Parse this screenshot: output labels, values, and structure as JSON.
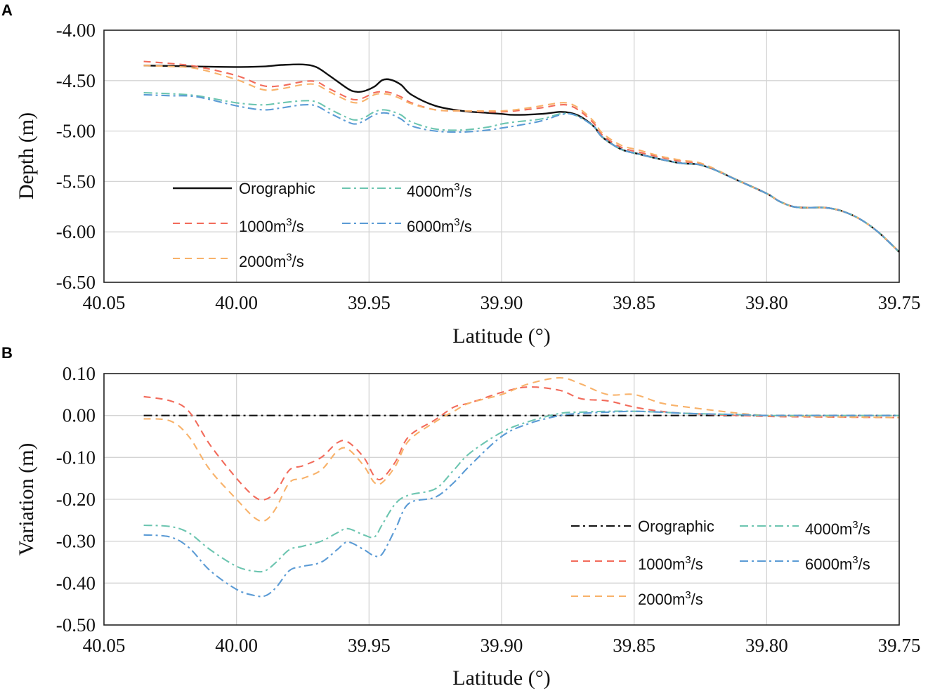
{
  "chart_data": [
    {
      "panel": "A",
      "type": "line",
      "xlabel": "Latitude (°)",
      "ylabel": "Depth (m)",
      "xlim": [
        40.05,
        39.75
      ],
      "ylim": [
        -6.5,
        -4.0
      ],
      "xticks": [
        40.05,
        40.0,
        39.95,
        39.9,
        39.85,
        39.8,
        39.75
      ],
      "xtick_labels": [
        "40.05",
        "40.00",
        "39.95",
        "39.90",
        "39.85",
        "39.80",
        "39.75"
      ],
      "yticks": [
        -4.0,
        -4.5,
        -5.0,
        -5.5,
        -6.0,
        -6.5
      ],
      "ytick_labels": [
        "-4.00",
        "-4.50",
        "-5.00",
        "-5.50",
        "-6.00",
        "-6.50"
      ],
      "grid": true,
      "legend_position": "lower-left",
      "series": [
        {
          "name": "Orographic",
          "color": "#111111",
          "dash": "solid",
          "x": [
            40.035,
            40.025,
            40.015,
            40.0,
            39.99,
            39.983,
            39.975,
            39.97,
            39.965,
            39.958,
            39.955,
            39.952,
            39.948,
            39.945,
            39.942,
            39.938,
            39.934,
            39.925,
            39.915,
            39.905,
            39.9,
            39.895,
            39.885,
            39.878,
            39.874,
            39.87,
            39.865,
            39.862,
            39.855,
            39.848,
            39.84,
            39.832,
            39.826,
            39.82,
            39.81,
            39.8,
            39.795,
            39.79,
            39.785,
            39.778,
            39.772,
            39.765,
            39.758,
            39.75
          ],
          "y": [
            -4.35,
            -4.355,
            -4.36,
            -4.365,
            -4.36,
            -4.345,
            -4.34,
            -4.365,
            -4.45,
            -4.58,
            -4.61,
            -4.605,
            -4.56,
            -4.495,
            -4.49,
            -4.54,
            -4.64,
            -4.75,
            -4.8,
            -4.82,
            -4.83,
            -4.84,
            -4.83,
            -4.81,
            -4.82,
            -4.86,
            -4.96,
            -5.06,
            -5.18,
            -5.23,
            -5.28,
            -5.32,
            -5.33,
            -5.38,
            -5.5,
            -5.62,
            -5.7,
            -5.75,
            -5.76,
            -5.76,
            -5.79,
            -5.87,
            -6.0,
            -6.2
          ]
        },
        {
          "name": "1000m³/s",
          "color": "#f26b5b",
          "dash": "dashed",
          "x": [
            40.035,
            40.025,
            40.015,
            40.0,
            39.99,
            39.983,
            39.975,
            39.97,
            39.965,
            39.958,
            39.955,
            39.952,
            39.948,
            39.945,
            39.942,
            39.938,
            39.934,
            39.925,
            39.915,
            39.905,
            39.9,
            39.895,
            39.885,
            39.878,
            39.874,
            39.87,
            39.865,
            39.862,
            39.855,
            39.848,
            39.84,
            39.832,
            39.826,
            39.82,
            39.81,
            39.8,
            39.795,
            39.79,
            39.785,
            39.778,
            39.772,
            39.765,
            39.758,
            39.75
          ],
          "y": [
            -4.31,
            -4.33,
            -4.36,
            -4.45,
            -4.55,
            -4.55,
            -4.51,
            -4.51,
            -4.58,
            -4.67,
            -4.69,
            -4.67,
            -4.62,
            -4.61,
            -4.62,
            -4.66,
            -4.72,
            -4.79,
            -4.8,
            -4.81,
            -4.81,
            -4.8,
            -4.77,
            -4.74,
            -4.75,
            -4.81,
            -4.93,
            -5.04,
            -5.16,
            -5.21,
            -5.26,
            -5.3,
            -5.32,
            -5.38,
            -5.5,
            -5.62,
            -5.7,
            -5.75,
            -5.76,
            -5.76,
            -5.79,
            -5.87,
            -6.0,
            -6.2
          ]
        },
        {
          "name": "2000m³/s",
          "color": "#f8b26a",
          "dash": "dashed",
          "x": [
            40.035,
            40.025,
            40.015,
            40.0,
            39.99,
            39.983,
            39.975,
            39.97,
            39.965,
            39.958,
            39.955,
            39.952,
            39.948,
            39.945,
            39.942,
            39.938,
            39.934,
            39.925,
            39.915,
            39.905,
            39.9,
            39.895,
            39.885,
            39.878,
            39.874,
            39.87,
            39.865,
            39.862,
            39.855,
            39.848,
            39.84,
            39.832,
            39.826,
            39.82,
            39.81,
            39.8,
            39.795,
            39.79,
            39.785,
            39.778,
            39.772,
            39.765,
            39.758,
            39.75
          ],
          "y": [
            -4.35,
            -4.36,
            -4.38,
            -4.49,
            -4.59,
            -4.58,
            -4.54,
            -4.54,
            -4.61,
            -4.7,
            -4.72,
            -4.7,
            -4.64,
            -4.63,
            -4.64,
            -4.68,
            -4.73,
            -4.79,
            -4.8,
            -4.8,
            -4.8,
            -4.79,
            -4.75,
            -4.72,
            -4.73,
            -4.79,
            -4.91,
            -5.02,
            -5.14,
            -5.19,
            -5.25,
            -5.29,
            -5.31,
            -5.37,
            -5.5,
            -5.62,
            -5.7,
            -5.75,
            -5.76,
            -5.76,
            -5.79,
            -5.87,
            -6.0,
            -6.2
          ]
        },
        {
          "name": "4000m³/s",
          "color": "#6cc5b0",
          "dash": "dashdot",
          "x": [
            40.035,
            40.025,
            40.015,
            40.0,
            39.99,
            39.983,
            39.975,
            39.97,
            39.965,
            39.958,
            39.955,
            39.952,
            39.948,
            39.945,
            39.942,
            39.938,
            39.934,
            39.925,
            39.915,
            39.905,
            39.9,
            39.895,
            39.885,
            39.878,
            39.874,
            39.87,
            39.865,
            39.862,
            39.855,
            39.848,
            39.84,
            39.832,
            39.826,
            39.82,
            39.81,
            39.8,
            39.795,
            39.79,
            39.785,
            39.778,
            39.772,
            39.765,
            39.758,
            39.75
          ],
          "y": [
            -4.62,
            -4.63,
            -4.65,
            -4.72,
            -4.74,
            -4.72,
            -4.7,
            -4.71,
            -4.78,
            -4.87,
            -4.89,
            -4.87,
            -4.81,
            -4.79,
            -4.8,
            -4.84,
            -4.91,
            -4.98,
            -4.99,
            -4.96,
            -4.93,
            -4.91,
            -4.88,
            -4.83,
            -4.83,
            -4.87,
            -4.96,
            -5.06,
            -5.18,
            -5.23,
            -5.28,
            -5.32,
            -5.33,
            -5.38,
            -5.5,
            -5.62,
            -5.7,
            -5.75,
            -5.76,
            -5.76,
            -5.79,
            -5.87,
            -6.0,
            -6.2
          ]
        },
        {
          "name": "6000m³/s",
          "color": "#5b9bd5",
          "dash": "dashdot",
          "x": [
            40.035,
            40.025,
            40.015,
            40.0,
            39.99,
            39.983,
            39.975,
            39.97,
            39.965,
            39.958,
            39.955,
            39.952,
            39.948,
            39.945,
            39.942,
            39.938,
            39.934,
            39.925,
            39.915,
            39.905,
            39.9,
            39.895,
            39.885,
            39.878,
            39.874,
            39.87,
            39.865,
            39.862,
            39.855,
            39.848,
            39.84,
            39.832,
            39.826,
            39.82,
            39.81,
            39.8,
            39.795,
            39.79,
            39.785,
            39.778,
            39.772,
            39.765,
            39.758,
            39.75
          ],
          "y": [
            -4.64,
            -4.65,
            -4.66,
            -4.75,
            -4.79,
            -4.77,
            -4.74,
            -4.75,
            -4.82,
            -4.91,
            -4.93,
            -4.9,
            -4.84,
            -4.82,
            -4.83,
            -4.88,
            -4.95,
            -5.0,
            -5.01,
            -4.99,
            -4.97,
            -4.95,
            -4.9,
            -4.84,
            -4.83,
            -4.87,
            -4.96,
            -5.06,
            -5.18,
            -5.23,
            -5.28,
            -5.32,
            -5.33,
            -5.38,
            -5.5,
            -5.62,
            -5.7,
            -5.75,
            -5.76,
            -5.76,
            -5.79,
            -5.87,
            -6.0,
            -6.2
          ]
        }
      ]
    },
    {
      "panel": "B",
      "type": "line",
      "xlabel": "Latitude (°)",
      "ylabel": "Variation (m)",
      "xlim": [
        40.05,
        39.75
      ],
      "ylim": [
        -0.5,
        0.1
      ],
      "xticks": [
        40.05,
        40.0,
        39.95,
        39.9,
        39.85,
        39.8,
        39.75
      ],
      "xtick_labels": [
        "40.05",
        "40.00",
        "39.95",
        "39.90",
        "39.85",
        "39.80",
        "39.75"
      ],
      "yticks": [
        0.1,
        0.0,
        -0.1,
        -0.2,
        -0.3,
        -0.4,
        -0.5
      ],
      "ytick_labels": [
        "0.10",
        "0.00",
        "-0.10",
        "-0.20",
        "-0.30",
        "-0.40",
        "-0.50"
      ],
      "grid": true,
      "legend_position": "lower-right",
      "series": [
        {
          "name": "Orographic",
          "color": "#111111",
          "dash": "dashdot",
          "x": [
            40.035,
            39.75
          ],
          "y": [
            0.0,
            0.0
          ]
        },
        {
          "name": "1000m³/s",
          "color": "#f26b5b",
          "dash": "dashed",
          "x": [
            40.035,
            40.025,
            40.018,
            40.01,
            40.0,
            39.993,
            39.989,
            39.985,
            39.98,
            39.975,
            39.968,
            39.962,
            39.958,
            39.952,
            39.948,
            39.945,
            39.94,
            39.935,
            39.925,
            39.918,
            39.912,
            39.9,
            39.89,
            39.878,
            39.87,
            39.86,
            39.85,
            39.84,
            39.83,
            39.81,
            39.8,
            39.79,
            39.75
          ],
          "y": [
            0.045,
            0.035,
            0.01,
            -0.07,
            -0.15,
            -0.195,
            -0.2,
            -0.18,
            -0.13,
            -0.12,
            -0.1,
            -0.065,
            -0.063,
            -0.1,
            -0.145,
            -0.15,
            -0.11,
            -0.05,
            -0.01,
            0.02,
            0.03,
            0.055,
            0.068,
            0.06,
            0.04,
            0.035,
            0.02,
            0.01,
            0.005,
            0.0,
            -0.002,
            -0.003,
            -0.005
          ]
        },
        {
          "name": "2000m³/s",
          "color": "#f8b26a",
          "dash": "dashed",
          "x": [
            40.035,
            40.025,
            40.018,
            40.01,
            40.0,
            39.993,
            39.989,
            39.985,
            39.98,
            39.975,
            39.968,
            39.962,
            39.958,
            39.952,
            39.948,
            39.945,
            39.94,
            39.935,
            39.925,
            39.918,
            39.912,
            39.9,
            39.89,
            39.878,
            39.87,
            39.86,
            39.85,
            39.84,
            39.83,
            39.81,
            39.8,
            39.79,
            39.75
          ],
          "y": [
            -0.008,
            -0.013,
            -0.05,
            -0.13,
            -0.2,
            -0.245,
            -0.25,
            -0.22,
            -0.16,
            -0.15,
            -0.13,
            -0.085,
            -0.08,
            -0.12,
            -0.16,
            -0.16,
            -0.12,
            -0.06,
            -0.015,
            0.01,
            0.03,
            0.05,
            0.075,
            0.09,
            0.075,
            0.05,
            0.05,
            0.03,
            0.02,
            0.005,
            0.0,
            -0.002,
            -0.005
          ]
        },
        {
          "name": "4000m³/s",
          "color": "#6cc5b0",
          "dash": "dashdot",
          "x": [
            40.035,
            40.025,
            40.018,
            40.01,
            40.0,
            39.993,
            39.989,
            39.985,
            39.98,
            39.975,
            39.968,
            39.962,
            39.958,
            39.952,
            39.948,
            39.945,
            39.94,
            39.935,
            39.925,
            39.918,
            39.912,
            39.9,
            39.89,
            39.878,
            39.87,
            39.86,
            39.85,
            39.84,
            39.83,
            39.81,
            39.8,
            39.79,
            39.75
          ],
          "y": [
            -0.262,
            -0.265,
            -0.28,
            -0.32,
            -0.36,
            -0.372,
            -0.37,
            -0.35,
            -0.32,
            -0.312,
            -0.3,
            -0.28,
            -0.27,
            -0.285,
            -0.29,
            -0.26,
            -0.21,
            -0.19,
            -0.175,
            -0.13,
            -0.09,
            -0.04,
            -0.015,
            0.005,
            0.008,
            0.01,
            0.01,
            0.008,
            0.005,
            0.002,
            0.0,
            0.0,
            0.0
          ]
        },
        {
          "name": "6000m³/s",
          "color": "#5b9bd5",
          "dash": "dashdot",
          "x": [
            40.035,
            40.025,
            40.018,
            40.01,
            40.0,
            39.993,
            39.989,
            39.985,
            39.98,
            39.975,
            39.968,
            39.962,
            39.958,
            39.952,
            39.948,
            39.945,
            39.94,
            39.935,
            39.925,
            39.918,
            39.912,
            39.9,
            39.89,
            39.878,
            39.87,
            39.86,
            39.85,
            39.84,
            39.83,
            39.81,
            39.8,
            39.79,
            39.75
          ],
          "y": [
            -0.285,
            -0.29,
            -0.315,
            -0.37,
            -0.415,
            -0.43,
            -0.43,
            -0.41,
            -0.37,
            -0.36,
            -0.35,
            -0.32,
            -0.302,
            -0.32,
            -0.335,
            -0.33,
            -0.27,
            -0.21,
            -0.195,
            -0.16,
            -0.12,
            -0.05,
            -0.02,
            0.0,
            0.005,
            0.008,
            0.01,
            0.008,
            0.005,
            0.002,
            0.0,
            0.0,
            0.0
          ]
        }
      ]
    }
  ],
  "legend_entries": [
    {
      "label": "Orographic",
      "superscript": ""
    },
    {
      "label": "1000m",
      "superscript": "3",
      "suffix": "/s"
    },
    {
      "label": "2000m",
      "superscript": "3",
      "suffix": "/s"
    },
    {
      "label": "4000m",
      "superscript": "3",
      "suffix": "/s"
    },
    {
      "label": "6000m",
      "superscript": "3",
      "suffix": "/s"
    }
  ]
}
